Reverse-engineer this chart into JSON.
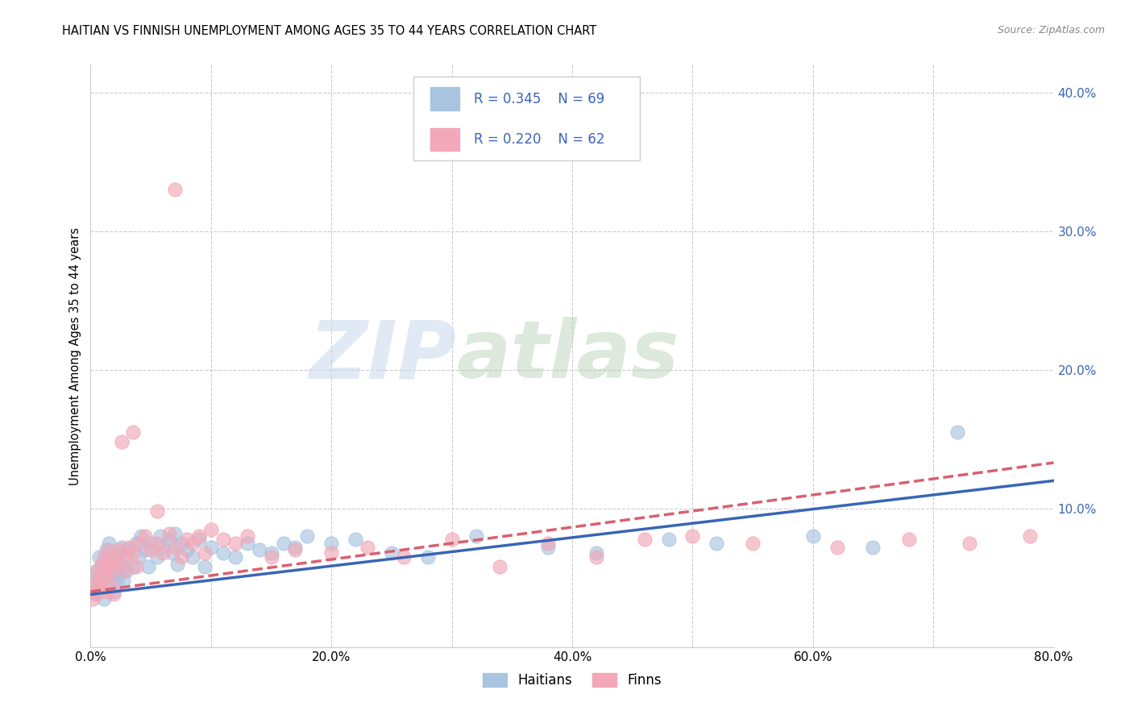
{
  "title": "HAITIAN VS FINNISH UNEMPLOYMENT AMONG AGES 35 TO 44 YEARS CORRELATION CHART",
  "source": "Source: ZipAtlas.com",
  "ylabel": "Unemployment Among Ages 35 to 44 years",
  "xlim": [
    0.0,
    0.8
  ],
  "ylim": [
    0.0,
    0.42
  ],
  "xtick_positions": [
    0.0,
    0.1,
    0.2,
    0.3,
    0.4,
    0.5,
    0.6,
    0.7,
    0.8
  ],
  "xtick_labels": [
    "0.0%",
    "",
    "20.0%",
    "",
    "40.0%",
    "",
    "60.0%",
    "",
    "80.0%"
  ],
  "ytick_positions": [
    0.0,
    0.1,
    0.2,
    0.3,
    0.4
  ],
  "ytick_labels": [
    "",
    "10.0%",
    "20.0%",
    "30.0%",
    "40.0%"
  ],
  "haitian_color": "#a8c4e0",
  "finn_color": "#f2a8b8",
  "haitian_line_color": "#3a65b5",
  "finn_line_color": "#d96070",
  "legend_text_color": "#3a65b5",
  "watermark_zip": "ZIP",
  "watermark_atlas": "atlas",
  "haitian_x": [
    0.002,
    0.003,
    0.004,
    0.005,
    0.006,
    0.007,
    0.008,
    0.009,
    0.01,
    0.011,
    0.012,
    0.013,
    0.014,
    0.015,
    0.016,
    0.017,
    0.018,
    0.019,
    0.02,
    0.021,
    0.022,
    0.023,
    0.024,
    0.025,
    0.026,
    0.027,
    0.028,
    0.03,
    0.032,
    0.035,
    0.038,
    0.04,
    0.042,
    0.045,
    0.048,
    0.05,
    0.055,
    0.058,
    0.06,
    0.065,
    0.068,
    0.07,
    0.072,
    0.075,
    0.08,
    0.085,
    0.09,
    0.095,
    0.1,
    0.11,
    0.12,
    0.13,
    0.14,
    0.15,
    0.16,
    0.17,
    0.18,
    0.2,
    0.22,
    0.25,
    0.28,
    0.32,
    0.38,
    0.42,
    0.48,
    0.52,
    0.6,
    0.65,
    0.72
  ],
  "haitian_y": [
    0.04,
    0.045,
    0.038,
    0.055,
    0.05,
    0.065,
    0.042,
    0.058,
    0.06,
    0.035,
    0.048,
    0.07,
    0.055,
    0.075,
    0.065,
    0.05,
    0.058,
    0.04,
    0.062,
    0.055,
    0.045,
    0.068,
    0.052,
    0.06,
    0.072,
    0.048,
    0.065,
    0.055,
    0.07,
    0.058,
    0.075,
    0.065,
    0.08,
    0.07,
    0.058,
    0.075,
    0.065,
    0.08,
    0.072,
    0.078,
    0.068,
    0.082,
    0.06,
    0.075,
    0.07,
    0.065,
    0.078,
    0.058,
    0.072,
    0.068,
    0.065,
    0.075,
    0.07,
    0.068,
    0.075,
    0.072,
    0.08,
    0.075,
    0.078,
    0.068,
    0.065,
    0.08,
    0.072,
    0.068,
    0.078,
    0.075,
    0.08,
    0.072,
    0.155
  ],
  "finn_x": [
    0.002,
    0.003,
    0.004,
    0.005,
    0.006,
    0.007,
    0.008,
    0.009,
    0.01,
    0.011,
    0.012,
    0.013,
    0.014,
    0.015,
    0.016,
    0.017,
    0.018,
    0.019,
    0.02,
    0.022,
    0.024,
    0.026,
    0.028,
    0.03,
    0.032,
    0.035,
    0.038,
    0.04,
    0.045,
    0.05,
    0.055,
    0.06,
    0.065,
    0.07,
    0.075,
    0.08,
    0.085,
    0.09,
    0.095,
    0.1,
    0.11,
    0.12,
    0.13,
    0.15,
    0.17,
    0.2,
    0.23,
    0.26,
    0.3,
    0.34,
    0.38,
    0.42,
    0.46,
    0.5,
    0.55,
    0.62,
    0.68,
    0.73,
    0.78,
    0.07,
    0.035,
    0.055
  ],
  "finn_y": [
    0.035,
    0.04,
    0.045,
    0.038,
    0.055,
    0.05,
    0.042,
    0.06,
    0.048,
    0.065,
    0.052,
    0.058,
    0.04,
    0.07,
    0.06,
    0.045,
    0.055,
    0.038,
    0.065,
    0.06,
    0.07,
    0.148,
    0.055,
    0.065,
    0.072,
    0.068,
    0.058,
    0.075,
    0.08,
    0.07,
    0.075,
    0.068,
    0.082,
    0.072,
    0.065,
    0.078,
    0.075,
    0.08,
    0.068,
    0.085,
    0.078,
    0.075,
    0.08,
    0.065,
    0.07,
    0.068,
    0.072,
    0.065,
    0.078,
    0.058,
    0.075,
    0.065,
    0.078,
    0.08,
    0.075,
    0.072,
    0.078,
    0.075,
    0.08,
    0.33,
    0.155,
    0.098
  ],
  "haitian_line_x0": 0.0,
  "haitian_line_y0": 0.038,
  "haitian_line_x1": 0.8,
  "haitian_line_y1": 0.12,
  "finn_line_x0": 0.0,
  "finn_line_y0": 0.04,
  "finn_line_x1": 0.8,
  "finn_line_y1": 0.133
}
